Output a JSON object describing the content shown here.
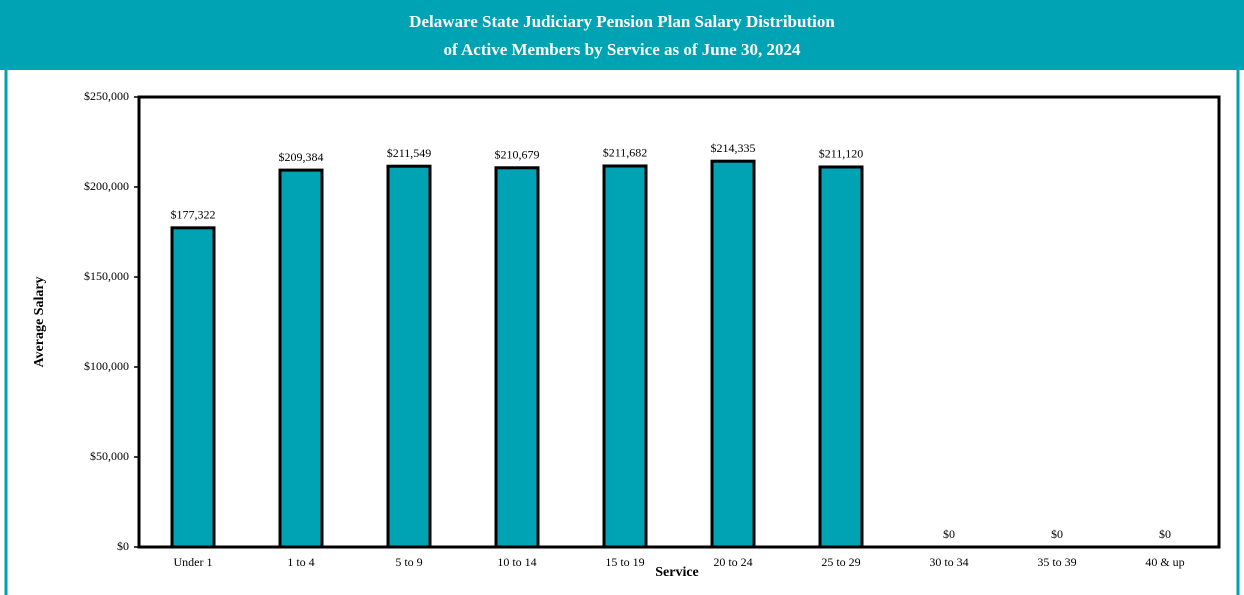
{
  "chart_data": {
    "type": "bar",
    "title": [
      "Delaware State Judiciary Pension Plan Salary Distribution",
      "of Active Members by Service as of June 30, 2024"
    ],
    "x_label": "Service",
    "y_label": "Average Salary",
    "categories": [
      "Under 1",
      "1 to 4",
      "5 to 9",
      "10 to 14",
      "15 to 19",
      "20 to 24",
      "25 to 29",
      "30 to 34",
      "35 to 39",
      "40 & up"
    ],
    "values": [
      177322,
      209384,
      211549,
      210679,
      211682,
      214335,
      211120,
      0,
      0,
      0
    ],
    "value_labels": [
      "$177,322",
      "$209,384",
      "$211,549",
      "$210,679",
      "$211,682",
      "$214,335",
      "$211,120",
      "$0",
      "$0",
      "$0"
    ],
    "color": "#00a3b4",
    "ylim": [
      0,
      250000
    ],
    "yticks": [
      {
        "value": 0,
        "label": "$0"
      },
      {
        "value": 50000,
        "label": "$50,000"
      },
      {
        "value": 100000,
        "label": "$100,000"
      },
      {
        "value": 150000,
        "label": "$150,000"
      },
      {
        "value": 200000,
        "label": "$200,000"
      },
      {
        "value": 250000,
        "label": "$250,000"
      }
    ],
    "grid": false
  }
}
